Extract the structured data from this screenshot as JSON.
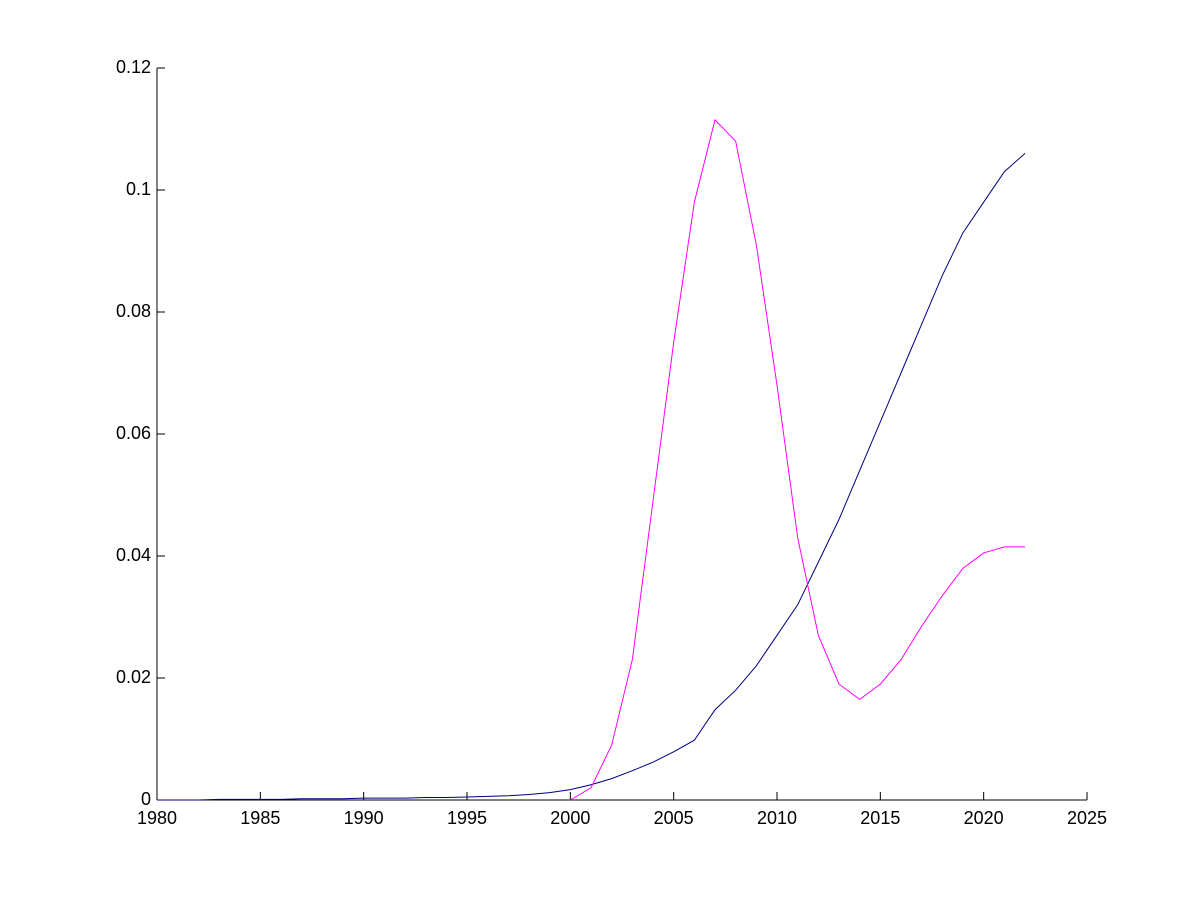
{
  "chart_data": {
    "type": "line",
    "x": [
      1980,
      1981,
      1982,
      1983,
      1984,
      1985,
      1986,
      1987,
      1988,
      1989,
      1990,
      1991,
      1992,
      1993,
      1994,
      1995,
      1996,
      1997,
      1998,
      1999,
      2000,
      2001,
      2002,
      2003,
      2004,
      2005,
      2006,
      2007,
      2008,
      2009,
      2010,
      2011,
      2012,
      2013,
      2014,
      2015,
      2016,
      2017,
      2018,
      2019,
      2020,
      2021,
      2022
    ],
    "series": [
      {
        "color": "#00007f",
        "values": [
          0,
          0,
          0,
          0.0001,
          0.0001,
          0.0001,
          0.0001,
          0.0002,
          0.0002,
          0.0002,
          0.0003,
          0.0003,
          0.0003,
          0.0004,
          0.0004,
          0.0005,
          0.0006,
          0.0007,
          0.0009,
          0.0012,
          0.0017,
          0.0025,
          0.0035,
          0.0048,
          0.0062,
          0.0079,
          0.0098,
          0.0148,
          0.018,
          0.022,
          0.027,
          0.032,
          0.039,
          0.046,
          0.054,
          0.062,
          0.07,
          0.078,
          0.086,
          0.093,
          0.098,
          0.103,
          0.106
        ]
      },
      {
        "color": "#ff00ff",
        "values": [
          null,
          null,
          null,
          null,
          null,
          null,
          null,
          null,
          null,
          null,
          null,
          null,
          null,
          null,
          null,
          null,
          null,
          null,
          null,
          null,
          0,
          0.002,
          0.009,
          0.023,
          0.049,
          0.075,
          0.098,
          0.1115,
          0.108,
          0.091,
          0.068,
          0.043,
          0.027,
          0.019,
          0.0165,
          0.019,
          0.023,
          0.0285,
          0.0335,
          0.038,
          0.0405,
          0.0415,
          0.0415
        ]
      }
    ],
    "xlim": [
      1980,
      2025
    ],
    "xticks": [
      1980,
      1985,
      1990,
      1995,
      2000,
      2005,
      2010,
      2015,
      2020,
      2025
    ],
    "ylim": [
      0,
      0.12
    ],
    "yticks": [
      0,
      0.02,
      0.04,
      0.06,
      0.08,
      0.1,
      0.12
    ]
  }
}
